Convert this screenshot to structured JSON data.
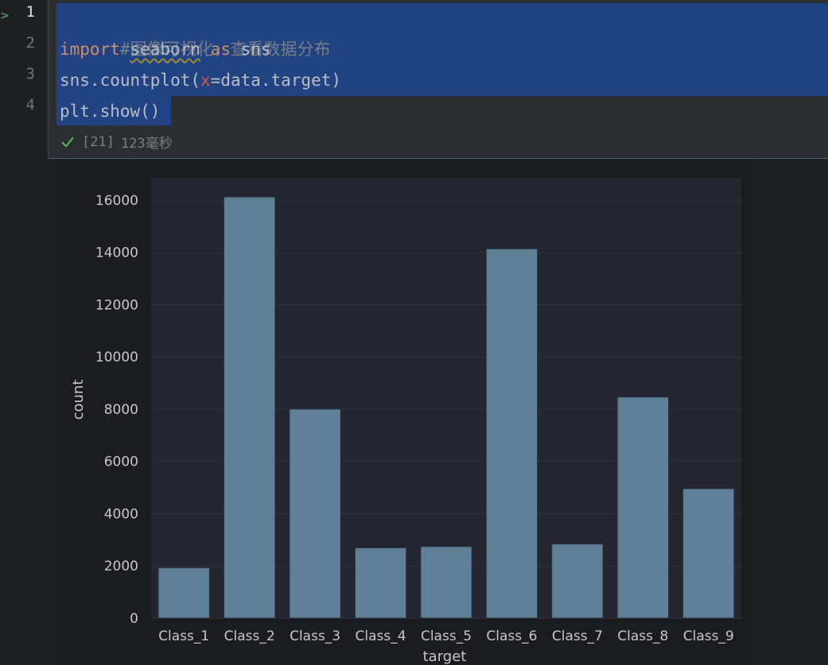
{
  "editor": {
    "line_numbers": [
      "1",
      "2",
      "3",
      "4"
    ],
    "lines": {
      "l1_comment": "#图像可视化，查看数据分布",
      "l2_import": "import",
      "l2_module": "seaborn",
      "l2_as": "as",
      "l2_alias": "sns",
      "l3_prefix": "sns.countplot(",
      "l3_param": "x",
      "l3_suffix": "=data.target)",
      "l4_code": "plt.show()"
    },
    "status": {
      "exec_count": "[21]",
      "duration": "123毫秒"
    }
  },
  "colors": {
    "bar": "#5f7f96",
    "selection": "#214283",
    "keyword": "#cf8e6d",
    "success": "#5fb865"
  },
  "chart_data": {
    "type": "bar",
    "categories": [
      "Class_1",
      "Class_2",
      "Class_3",
      "Class_4",
      "Class_5",
      "Class_6",
      "Class_7",
      "Class_8",
      "Class_9"
    ],
    "values": [
      1929,
      16122,
      8004,
      2691,
      2739,
      14135,
      2839,
      8464,
      4955
    ],
    "xlabel": "target",
    "ylabel": "count",
    "ylim": [
      0,
      16850
    ],
    "yticks": [
      0,
      2000,
      4000,
      6000,
      8000,
      10000,
      12000,
      14000,
      16000
    ],
    "grid": true
  }
}
